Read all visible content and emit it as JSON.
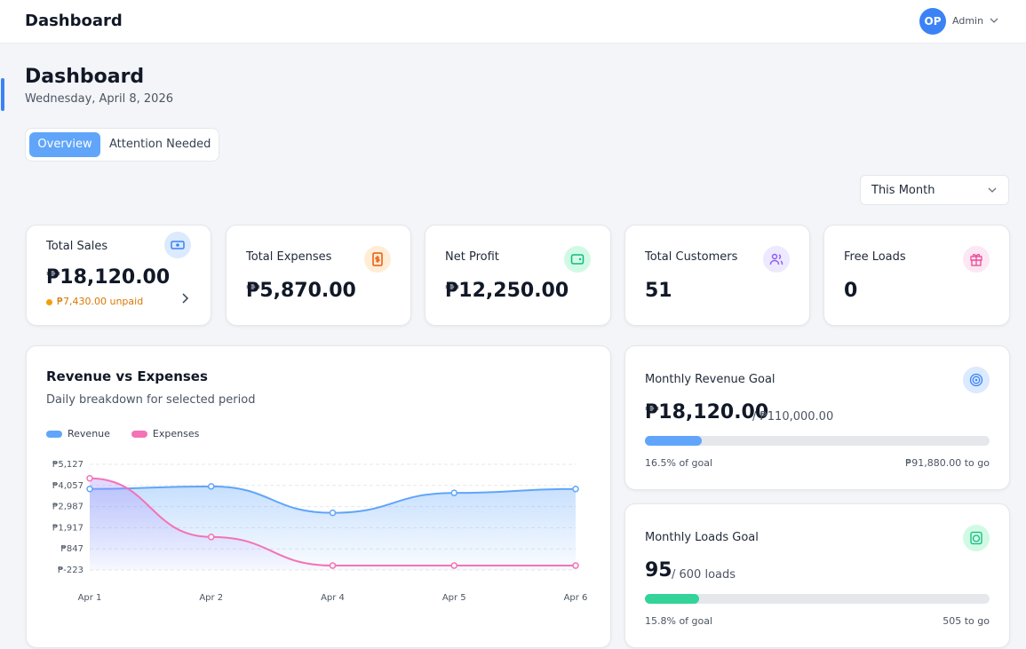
{
  "header": {
    "title": "Dashboard",
    "avatar": "OP",
    "user": "Admin"
  },
  "page": {
    "title": "Dashboard",
    "date": "Wednesday, April 8, 2026",
    "tabs": [
      "Overview",
      "Attention Needed"
    ],
    "period": "This Month"
  },
  "stats": [
    {
      "label": "Total Sales",
      "value": "₱18,120.00",
      "note": "₱7,430.00 unpaid"
    },
    {
      "label": "Total Expenses",
      "value": "₱5,870.00"
    },
    {
      "label": "Net Profit",
      "value": "₱12,250.00"
    },
    {
      "label": "Total Customers",
      "value": "51"
    },
    {
      "label": "Free Loads",
      "value": "0"
    }
  ],
  "goals": [
    {
      "title": "Monthly Revenue Goal",
      "value": "₱18,120.00",
      "target": "/ ₱110,000.00",
      "progress": 16.5,
      "progress_label": "16.5% of goal",
      "remaining": "₱91,880.00 to go"
    },
    {
      "title": "Monthly Loads Goal",
      "value": "95",
      "target": "/ 600 loads",
      "progress": 15.8,
      "progress_label": "15.8% of goal",
      "remaining": "505 to go"
    }
  ],
  "chart_data": {
    "type": "line",
    "title": "Revenue vs Expenses",
    "subtitle": "Daily breakdown for selected period",
    "categories": [
      "Apr 1",
      "Apr 2",
      "Apr 4",
      "Apr 5",
      "Apr 6"
    ],
    "series": [
      {
        "name": "Revenue",
        "color": "#60a5fa",
        "values": [
          3880,
          4010,
          2670,
          3680,
          3880
        ]
      },
      {
        "name": "Expenses",
        "color": "#f472b6",
        "values": [
          4420,
          1450,
          0,
          0,
          0
        ]
      }
    ],
    "ylim": [
      -223,
      5127
    ],
    "yticks": [
      {
        "value": -223,
        "label": "₱-223"
      },
      {
        "value": 847,
        "label": "₱847"
      },
      {
        "value": 1917,
        "label": "₱1,917"
      },
      {
        "value": 2987,
        "label": "₱2,987"
      },
      {
        "value": 4057,
        "label": "₱4,057"
      },
      {
        "value": 5127,
        "label": "₱5,127"
      }
    ],
    "grid": true
  }
}
